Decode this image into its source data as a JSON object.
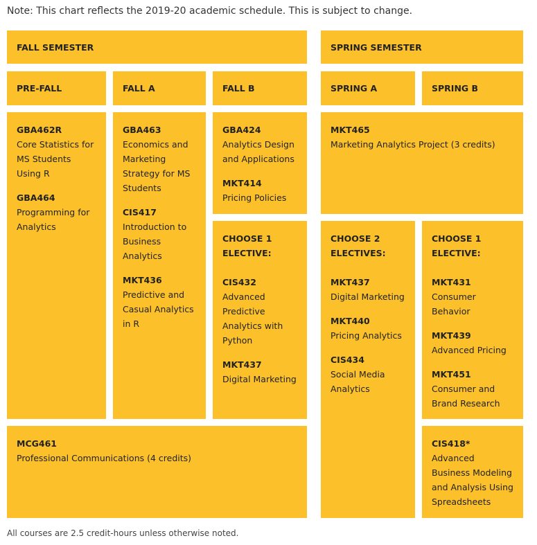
{
  "note": "Note: This chart reflects the 2019-20 academic schedule. This is subject to change.",
  "footnote": "All courses are 2.5 credit-hours unless otherwise noted.",
  "headers": {
    "fall_semester": "FALL SEMESTER",
    "spring_semester": "SPRING SEMESTER",
    "pre_fall": "PRE-FALL",
    "fall_a": "FALL A",
    "fall_b": "FALL B",
    "spring_a": "SPRING A",
    "spring_b": "SPRING B"
  },
  "pre_fall": [
    {
      "code": "GBA462R",
      "name": "Core Statistics for MS Students Using R"
    },
    {
      "code": "GBA464",
      "name": "Programming for Analytics"
    }
  ],
  "fall_a": [
    {
      "code": "GBA463",
      "name": "Economics and Marketing Strategy for MS Students"
    },
    {
      "code": "CIS417",
      "name": "Introduction to Business Analytics"
    },
    {
      "code": "MKT436",
      "name": "Predictive and Casual Analytics in R"
    }
  ],
  "fall_b": [
    {
      "code": "GBA424",
      "name": "Analytics Design and Applications"
    },
    {
      "code": "MKT414",
      "name": "Pricing Policies"
    }
  ],
  "fall_b_elective": {
    "heading": "CHOOSE 1 ELECTIVE:",
    "courses": [
      {
        "code": "CIS432",
        "name": "Advanced Predictive Analytics with Python"
      },
      {
        "code": "MKT437",
        "name": "Digital Marketing"
      }
    ]
  },
  "spring_core": [
    {
      "code": "MKT465",
      "name": "Marketing Analytics Project (3 credits)"
    }
  ],
  "spring_a_elective": {
    "heading": "CHOOSE 2 ELECTIVES:",
    "courses": [
      {
        "code": "MKT437",
        "name": "Digital Marketing"
      },
      {
        "code": "MKT440",
        "name": "Pricing Analytics"
      },
      {
        "code": "CIS434",
        "name": "Social Media Analytics"
      }
    ]
  },
  "spring_b_elective": {
    "heading": "CHOOSE 1 ELECTIVE:",
    "courses": [
      {
        "code": "MKT431",
        "name": "Consumer Behavior"
      },
      {
        "code": "MKT439",
        "name": "Advanced Pricing"
      },
      {
        "code": "MKT451",
        "name": "Consumer and Brand Research"
      }
    ]
  },
  "fall_wide": [
    {
      "code": "MCG461",
      "name": "Professional Communications (4 credits)"
    }
  ],
  "spring_b_extra": [
    {
      "code": "CIS418*",
      "name": "Advanced Business Modeling and Analysis Using Spreadsheets"
    }
  ],
  "colors": {
    "box": "#fcc12a",
    "text": "#222222"
  }
}
